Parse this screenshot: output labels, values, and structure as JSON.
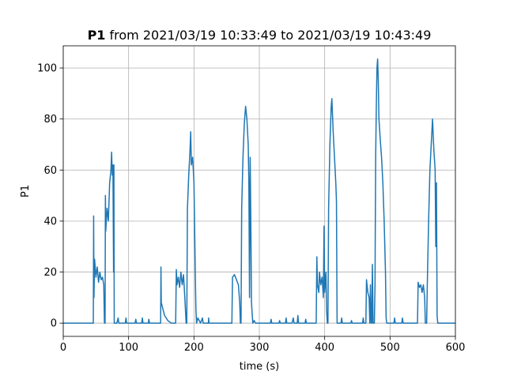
{
  "chart_data": {
    "type": "line",
    "title_bold": "P1",
    "title": "from 2021/03/19 10:33:49 to 2021/03/19 10:43:49",
    "x_label": "time (s)",
    "y_label": "P1",
    "xlim": [
      0,
      600
    ],
    "ylim": [
      -5.2,
      108.7
    ],
    "xticks": [
      0,
      100,
      200,
      300,
      400,
      500,
      600
    ],
    "yticks": [
      0,
      20,
      40,
      60,
      80,
      100
    ],
    "grid": true,
    "series": [
      {
        "color": "#1f77b4",
        "x": [
          0,
          46,
          46.5,
          47,
          48,
          50,
          52,
          54,
          56,
          58,
          60,
          62,
          63,
          64,
          64.5,
          65,
          67,
          69,
          71,
          73,
          74,
          75,
          76,
          77,
          77.5,
          78,
          82,
          84,
          85,
          95,
          96,
          97,
          110,
          111,
          112,
          120,
          121,
          122,
          130,
          131,
          132,
          149,
          149.5,
          150,
          155,
          160,
          165,
          172,
          173,
          174,
          176,
          178,
          180,
          182,
          184,
          186,
          188,
          189,
          190,
          192,
          194,
          195,
          196,
          198,
          200,
          202,
          203,
          204,
          206,
          210,
          213,
          214,
          222,
          222.5,
          223,
          258,
          259,
          262,
          265,
          268,
          270,
          271,
          272,
          273,
          275,
          277,
          279,
          281,
          283,
          284,
          285,
          286,
          287,
          288,
          290,
          292,
          294,
          317,
          318,
          319,
          330,
          331,
          332,
          340,
          341,
          342,
          350,
          352,
          353,
          358,
          359,
          360,
          370,
          371,
          372,
          387,
          388,
          389,
          391,
          392,
          394,
          396,
          398,
          399,
          400,
          402,
          403,
          404,
          405,
          406,
          408,
          410,
          411,
          413,
          415,
          417,
          418,
          419,
          425,
          426,
          427,
          440,
          441,
          442,
          458,
          459,
          460,
          463,
          464,
          466,
          468,
          469,
          470,
          471,
          472,
          473,
          474,
          476,
          477,
          478,
          479,
          480,
          481,
          482,
          483,
          485,
          487,
          489,
          491,
          493,
          494,
          495,
          506,
          507,
          508,
          518,
          519,
          520,
          542,
          543,
          545,
          547,
          549,
          551,
          553,
          554,
          556,
          557,
          559,
          561,
          563,
          565,
          567,
          569,
          570,
          571,
          572,
          573,
          600
        ],
        "values": [
          0,
          0,
          42,
          10,
          25,
          18,
          22,
          16,
          20,
          17,
          18,
          15,
          0,
          0,
          50,
          36,
          45,
          40,
          55,
          60,
          67,
          58,
          62,
          20,
          62,
          0,
          0,
          2,
          0,
          0,
          2,
          0,
          0,
          1.5,
          0,
          0,
          2,
          0,
          0,
          1.5,
          0,
          0,
          22,
          8,
          3,
          1,
          0,
          0,
          21,
          15,
          18,
          14,
          20,
          15,
          19,
          10,
          0,
          0,
          45,
          58,
          68,
          75,
          62,
          65,
          55,
          20,
          5,
          0,
          2,
          0,
          2,
          0,
          0,
          2,
          0,
          0,
          18,
          19,
          17,
          15,
          8,
          0,
          0,
          45,
          65,
          78,
          85,
          80,
          70,
          55,
          10,
          65,
          40,
          8,
          0,
          1,
          0,
          0,
          1.5,
          0,
          0,
          1,
          0,
          0,
          2,
          0,
          0,
          2,
          0,
          0,
          3,
          0,
          0,
          1.5,
          0,
          0,
          26,
          15,
          12,
          20,
          15,
          18,
          10,
          38,
          12,
          20,
          5,
          0,
          0,
          45,
          70,
          85,
          88,
          75,
          65,
          55,
          48,
          0,
          0,
          2,
          0,
          0,
          1,
          0,
          0,
          2,
          0,
          0,
          17,
          12,
          10,
          0,
          15,
          0,
          0,
          23,
          0,
          0,
          15,
          65,
          85,
          100,
          103.5,
          95,
          80,
          72,
          65,
          55,
          40,
          20,
          2,
          0,
          0,
          2,
          0,
          0,
          2,
          0,
          0,
          16,
          14,
          15,
          12,
          15,
          10,
          0,
          0,
          15,
          40,
          60,
          70,
          80,
          68,
          60,
          30,
          55,
          3,
          0,
          0
        ]
      }
    ]
  }
}
